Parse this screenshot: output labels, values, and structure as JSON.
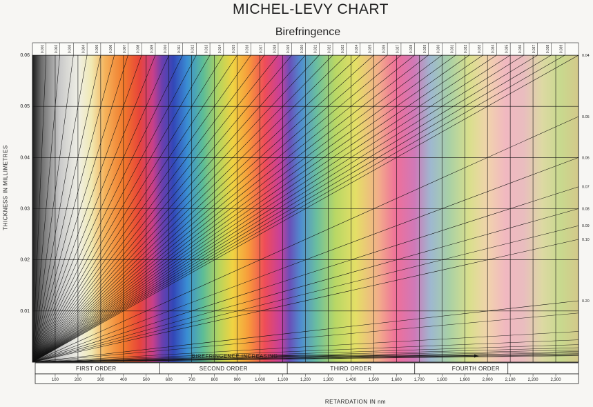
{
  "chart_data": {
    "type": "line",
    "title": "MICHEL-LEVY CHART",
    "subtitle": "Birefringence",
    "ylabel": "THICKNESS IN MILLIMETRES",
    "xlabel": "RETARDATION IN nm",
    "xlim": [
      0,
      2400
    ],
    "ylim": [
      0,
      0.06
    ],
    "y_ticks": [
      "0.01",
      "0.02",
      "0.03",
      "0.04",
      "0.05",
      "0.06"
    ],
    "y_tick_values": [
      0.01,
      0.02,
      0.03,
      0.04,
      0.05,
      0.06
    ],
    "x_ticks": [
      "100",
      "200",
      "300",
      "400",
      "500",
      "600",
      "700",
      "800",
      "900",
      "1,000",
      "1,100",
      "1,200",
      "1,300",
      "1,400",
      "1,500",
      "1,600",
      "1,700",
      "1,800",
      "1,900",
      "2,000",
      "2,100",
      "2,200",
      "2,300"
    ],
    "x_tick_values": [
      100,
      200,
      300,
      400,
      500,
      600,
      700,
      800,
      900,
      1000,
      1100,
      1200,
      1300,
      1400,
      1500,
      1600,
      1700,
      1800,
      1900,
      2000,
      2100,
      2200,
      2300
    ],
    "orders": [
      "FIRST ORDER",
      "SECOND ORDER",
      "THIRD ORDER",
      "FOURTH ORDER"
    ],
    "order_bounds": [
      [
        0,
        560
      ],
      [
        560,
        1120
      ],
      [
        1120,
        1680
      ],
      [
        1680,
        2400
      ]
    ],
    "arrow_label": "BIREFRINGENCE   INCREASING",
    "top_birefringence_labels": [
      "0.001",
      "0.002",
      "0.003",
      "0.004",
      "0.005",
      "0.006",
      "0.007",
      "0.008",
      "0.009",
      "0.010",
      "0.011",
      "0.012",
      "0.013",
      "0.014",
      "0.015",
      "0.016",
      "0.017",
      "0.018",
      "0.019",
      "0.020",
      "0.021",
      "0.022",
      "0.023",
      "0.024",
      "0.025",
      "0.026",
      "0.027",
      "0.028",
      "0.029",
      "0.030",
      "0.031",
      "0.032",
      "0.033",
      "0.034",
      "0.035",
      "0.036",
      "0.037",
      "0.038",
      "0.039"
    ],
    "top_birefringence_values": [
      0.001,
      0.002,
      0.003,
      0.004,
      0.005,
      0.006,
      0.007,
      0.008,
      0.009,
      0.01,
      0.011,
      0.012,
      0.013,
      0.014,
      0.015,
      0.016,
      0.017,
      0.018,
      0.019,
      0.02,
      0.021,
      0.022,
      0.023,
      0.024,
      0.025,
      0.026,
      0.027,
      0.028,
      0.029,
      0.03,
      0.031,
      0.032,
      0.033,
      0.034,
      0.035,
      0.036,
      0.037,
      0.038,
      0.039
    ],
    "right_birefringence_labels": [
      "0.04",
      "0.05",
      "0.06",
      "0.07",
      "0.08",
      "0.09",
      "0.10",
      "0.20"
    ],
    "right_birefringence_values": [
      0.04,
      0.05,
      0.06,
      0.07,
      0.08,
      0.09,
      0.1,
      0.2
    ],
    "interference_colors": [
      {
        "retardation": 0,
        "color": "#1a1a1a"
      },
      {
        "retardation": 40,
        "color": "#6e6e6e"
      },
      {
        "retardation": 120,
        "color": "#c9c9c9"
      },
      {
        "retardation": 200,
        "color": "#efefe6"
      },
      {
        "retardation": 260,
        "color": "#f1e9b2"
      },
      {
        "retardation": 320,
        "color": "#f5b25a"
      },
      {
        "retardation": 400,
        "color": "#f17a2c"
      },
      {
        "retardation": 470,
        "color": "#e8453a"
      },
      {
        "retardation": 530,
        "color": "#c83f8a"
      },
      {
        "retardation": 570,
        "color": "#6b3fae"
      },
      {
        "retardation": 620,
        "color": "#3247b8"
      },
      {
        "retardation": 680,
        "color": "#3a8ed3"
      },
      {
        "retardation": 750,
        "color": "#5dbd96"
      },
      {
        "retardation": 820,
        "color": "#b7d45d"
      },
      {
        "retardation": 880,
        "color": "#f0d342"
      },
      {
        "retardation": 950,
        "color": "#f79a3b"
      },
      {
        "retardation": 1020,
        "color": "#ef4d58"
      },
      {
        "retardation": 1090,
        "color": "#c7409b"
      },
      {
        "retardation": 1130,
        "color": "#6a4fb8"
      },
      {
        "retardation": 1180,
        "color": "#4f8ecf"
      },
      {
        "retardation": 1250,
        "color": "#6bbf9e"
      },
      {
        "retardation": 1330,
        "color": "#b8d765"
      },
      {
        "retardation": 1420,
        "color": "#e4df66"
      },
      {
        "retardation": 1520,
        "color": "#f2ae8a"
      },
      {
        "retardation": 1600,
        "color": "#ef6f9a"
      },
      {
        "retardation": 1680,
        "color": "#cf79b8"
      },
      {
        "retardation": 1750,
        "color": "#9eb8cf"
      },
      {
        "retardation": 1830,
        "color": "#a8d0a6"
      },
      {
        "retardation": 1920,
        "color": "#d9df8c"
      },
      {
        "retardation": 2000,
        "color": "#f1d3ac"
      },
      {
        "retardation": 2080,
        "color": "#f1b8c0"
      },
      {
        "retardation": 2160,
        "color": "#e9bdbf"
      },
      {
        "retardation": 2240,
        "color": "#ddd9a3"
      },
      {
        "retardation": 2320,
        "color": "#c8d98e"
      },
      {
        "retardation": 2400,
        "color": "#d4c98a"
      }
    ],
    "grid": true
  }
}
